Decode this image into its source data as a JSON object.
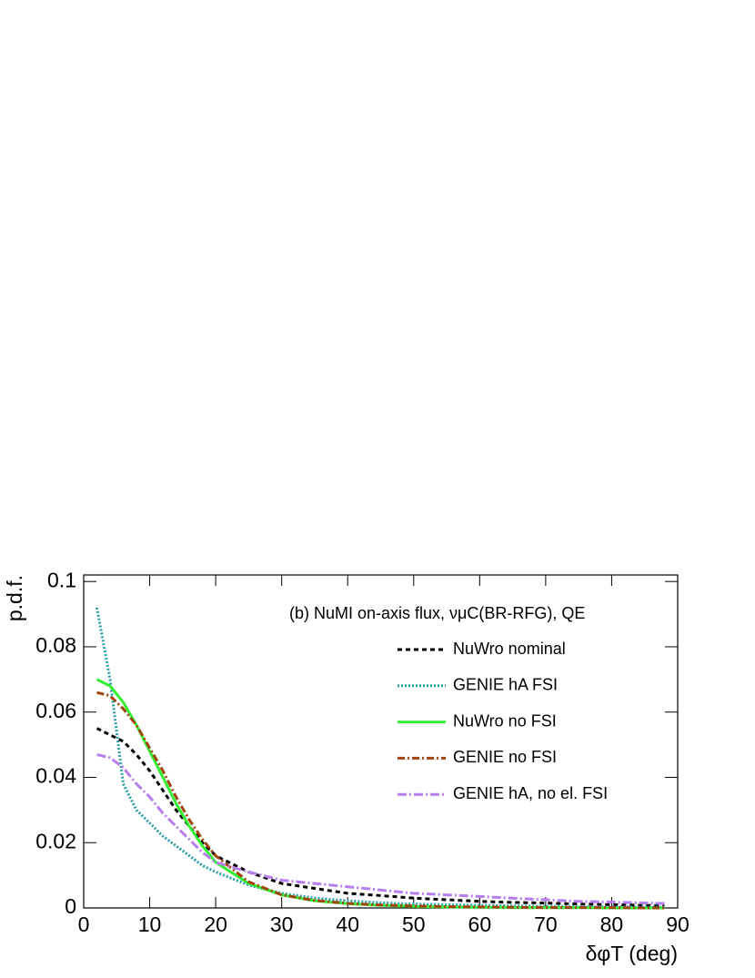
{
  "chart_data": {
    "type": "line",
    "annotation": "(b) NuMI on-axis flux, νμC(BR-RFG), QE",
    "x_label": "δφT (deg)",
    "y_label": "p.d.f.",
    "x": [
      2,
      4,
      6,
      8,
      10,
      12,
      14,
      16,
      18,
      20,
      25,
      30,
      35,
      40,
      45,
      50,
      55,
      60,
      65,
      70,
      75,
      80,
      85,
      88
    ],
    "series": [
      {
        "name": "NuWro nominal",
        "color": "#000000",
        "dash": "5,4",
        "values": [
          0.055,
          0.053,
          0.051,
          0.047,
          0.042,
          0.036,
          0.03,
          0.025,
          0.02,
          0.016,
          0.011,
          0.0075,
          0.006,
          0.0045,
          0.0038,
          0.003,
          0.0025,
          0.002,
          0.0017,
          0.0015,
          0.0012,
          0.001,
          0.0008,
          0.0007
        ]
      },
      {
        "name": "GENIE hA FSI",
        "color": "#2a9fa8",
        "dash": "2,2",
        "values": [
          0.092,
          0.07,
          0.038,
          0.03,
          0.026,
          0.022,
          0.019,
          0.016,
          0.013,
          0.011,
          0.007,
          0.0045,
          0.003,
          0.0022,
          0.0016,
          0.0012,
          0.001,
          0.0008,
          0.0006,
          0.0005,
          0.0004,
          0.0003,
          0.0003,
          0.0002
        ]
      },
      {
        "name": "NuWro no FSI",
        "color": "#33ee33",
        "dash": "none",
        "values": [
          0.07,
          0.068,
          0.063,
          0.056,
          0.048,
          0.04,
          0.032,
          0.025,
          0.019,
          0.014,
          0.0075,
          0.004,
          0.0022,
          0.0013,
          0.0008,
          0.0005,
          0.0003,
          0.0002,
          0.0001,
          0.0001,
          0.0001,
          0,
          0,
          0
        ]
      },
      {
        "name": "GENIE no FSI",
        "color": "#a0460c",
        "dash": "8,3,2,3",
        "values": [
          0.066,
          0.065,
          0.061,
          0.056,
          0.049,
          0.042,
          0.034,
          0.027,
          0.021,
          0.016,
          0.008,
          0.004,
          0.0023,
          0.0014,
          0.0009,
          0.0006,
          0.0004,
          0.0003,
          0.0002,
          0.0001,
          0.0001,
          0.0001,
          0,
          0
        ]
      },
      {
        "name": "GENIE hA, no el. FSI",
        "color": "#b77ef0",
        "dash": "10,3,2,3",
        "values": [
          0.047,
          0.046,
          0.043,
          0.038,
          0.034,
          0.029,
          0.025,
          0.021,
          0.017,
          0.014,
          0.011,
          0.0085,
          0.0075,
          0.0065,
          0.0055,
          0.0045,
          0.004,
          0.0035,
          0.003,
          0.0025,
          0.002,
          0.0018,
          0.0015,
          0.0014
        ]
      }
    ],
    "xlim": [
      0,
      90
    ],
    "xticks": [
      0,
      10,
      20,
      30,
      40,
      50,
      60,
      70,
      80,
      90
    ],
    "ylim": [
      0,
      0.102
    ],
    "yticks": [
      0,
      0.02,
      0.04,
      0.06,
      0.08,
      0.1
    ],
    "grid": false
  }
}
